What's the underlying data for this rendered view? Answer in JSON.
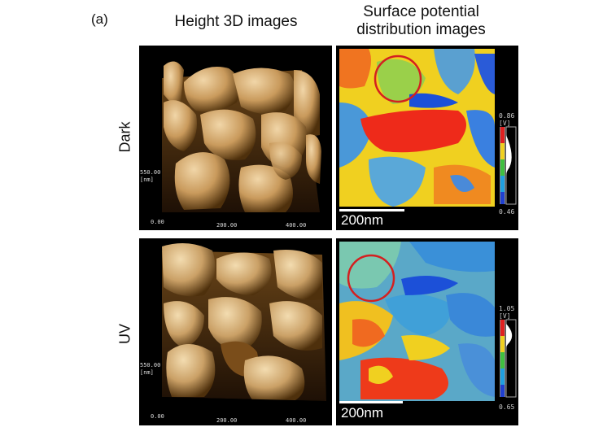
{
  "panel_label": "(a)",
  "columns": {
    "height": "Height 3D images",
    "potential_line1": "Surface potential",
    "potential_line2": "distribution images"
  },
  "rows": {
    "dark": "Dark",
    "uv": "UV"
  },
  "height_panel": {
    "z_value": "550.00",
    "z_unit": "[nm]",
    "x_ticks": [
      "0.00",
      "200.00",
      "400.00"
    ]
  },
  "potential_dark": {
    "scalebar": "200nm",
    "cbar_max": "0.86",
    "cbar_unit": "[V]",
    "cbar_min": "0.46"
  },
  "potential_uv": {
    "scalebar": "200nm",
    "cbar_max": "1.05",
    "cbar_unit": "[V]",
    "cbar_min": "0.65"
  },
  "colors": {
    "highlight_circle": "#d42020",
    "grain_light": "#e0bb86",
    "grain_dark": "#5a3810",
    "potential_high": "#ee2a1a",
    "potential_low": "#1c50d8"
  }
}
